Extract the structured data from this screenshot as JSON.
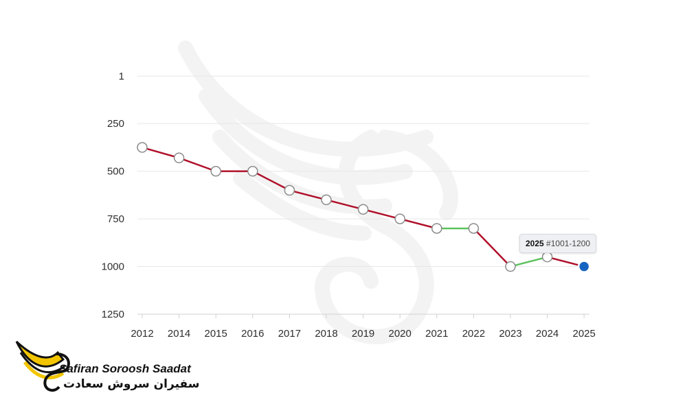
{
  "chart_data": {
    "type": "line",
    "y_reversed": true,
    "ylim": [
      1,
      1250
    ],
    "yticks": [
      "1",
      "250",
      "500",
      "750",
      "1000",
      "1250"
    ],
    "ytick_values": [
      1,
      250,
      500,
      750,
      1000,
      1250
    ],
    "x": [
      "2012",
      "2014",
      "2015",
      "2016",
      "2017",
      "2018",
      "2019",
      "2020",
      "2021",
      "2022",
      "2023",
      "2024",
      "2025"
    ],
    "values": [
      375,
      430,
      500,
      500,
      600,
      650,
      700,
      750,
      800,
      800,
      1000,
      950,
      1000
    ],
    "segment_colors": [
      "#b0102a",
      "#b0102a",
      "#b0102a",
      "#b0102a",
      "#b0102a",
      "#b0102a",
      "#b0102a",
      "#b0102a",
      "#5cc15c",
      "#b0102a",
      "#5cc15c",
      "#b0102a"
    ],
    "highlight_index": 12,
    "grid": true,
    "colors": {
      "decline": "#b0102a",
      "improve": "#5cc15c",
      "highlight": "#1565c0"
    }
  },
  "tooltip": {
    "year": "2025",
    "rank": "#1001-1200"
  },
  "logo": {
    "name_en": "Safiran Soroosh Saadat",
    "name_fa": "سفیران سروش سعادت"
  }
}
